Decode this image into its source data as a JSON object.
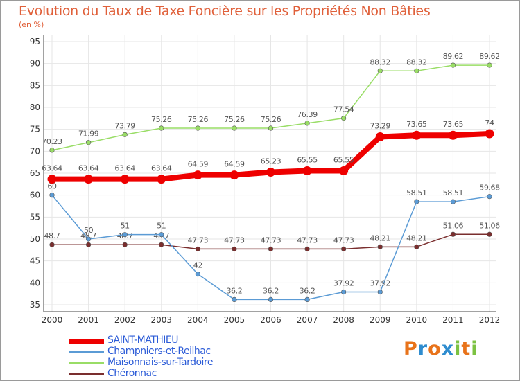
{
  "chart_data": {
    "type": "line",
    "title": "Evolution du Taux de Taxe Foncière sur les Propriétés Non Bâties",
    "subtitle": "(en %)",
    "x": [
      "2000",
      "2001",
      "2002",
      "2003",
      "2004",
      "2005",
      "2006",
      "2007",
      "2008",
      "2009",
      "2010",
      "2011",
      "2012"
    ],
    "ylim": [
      35,
      95
    ],
    "yticks": [
      35,
      40,
      45,
      50,
      55,
      60,
      65,
      70,
      75,
      80,
      85,
      90,
      95
    ],
    "grid": true,
    "legend_position": "bottom-left",
    "series": [
      {
        "name": "SAINT-MATHIEU",
        "color": "#ee0000",
        "values": [
          63.64,
          63.64,
          63.64,
          63.64,
          64.59,
          64.59,
          65.23,
          65.55,
          65.55,
          73.29,
          73.65,
          73.65,
          74
        ],
        "labels": [
          "63.64",
          "63.64",
          "63.64",
          "63.64",
          "64.59",
          "64.59",
          "65.23",
          "65.55",
          "65.55",
          "73.29",
          "73.65",
          "73.65",
          "74"
        ]
      },
      {
        "name": "Champniers-et-Reilhac",
        "color": "#5b9bd5",
        "values": [
          60,
          50,
          51,
          51,
          42,
          36.2,
          36.2,
          36.2,
          37.92,
          37.92,
          58.51,
          58.51,
          59.68
        ],
        "labels": [
          "60",
          "50",
          "51",
          "51",
          "42",
          "36.2",
          "36.2",
          "36.2",
          "37.92",
          "37.92",
          "58.51",
          "58.51",
          "59.68"
        ]
      },
      {
        "name": "Maisonnais-sur-Tardoire",
        "color": "#99dd66",
        "values": [
          70.23,
          71.99,
          73.79,
          75.26,
          75.26,
          75.26,
          75.26,
          76.39,
          77.54,
          88.32,
          88.32,
          89.62,
          89.62
        ],
        "labels": [
          "70.23",
          "71.99",
          "73.79",
          "75.26",
          "75.26",
          "75.26",
          "75.26",
          "76.39",
          "77.54",
          "88.32",
          "88.32",
          "89.62",
          "89.62"
        ]
      },
      {
        "name": "Chéronnac",
        "color": "#7a2e2e",
        "values": [
          48.7,
          48.7,
          48.7,
          48.7,
          47.73,
          47.73,
          47.73,
          47.73,
          47.73,
          48.21,
          48.21,
          51.06,
          51.06
        ],
        "labels": [
          "48.7",
          "48.7",
          "48.7",
          "48.7",
          "47.73",
          "47.73",
          "47.73",
          "47.73",
          "47.73",
          "48.21",
          "48.21",
          "51.06",
          "51.06"
        ]
      }
    ]
  },
  "logo": {
    "letters": [
      "P",
      "r",
      "o",
      "x",
      "i",
      "t",
      "i"
    ],
    "colors": [
      "#e8731a",
      "#2e8ccf",
      "#e8731a",
      "#2e8ccf",
      "#7cc242",
      "#e8731a",
      "#7cc242"
    ]
  }
}
